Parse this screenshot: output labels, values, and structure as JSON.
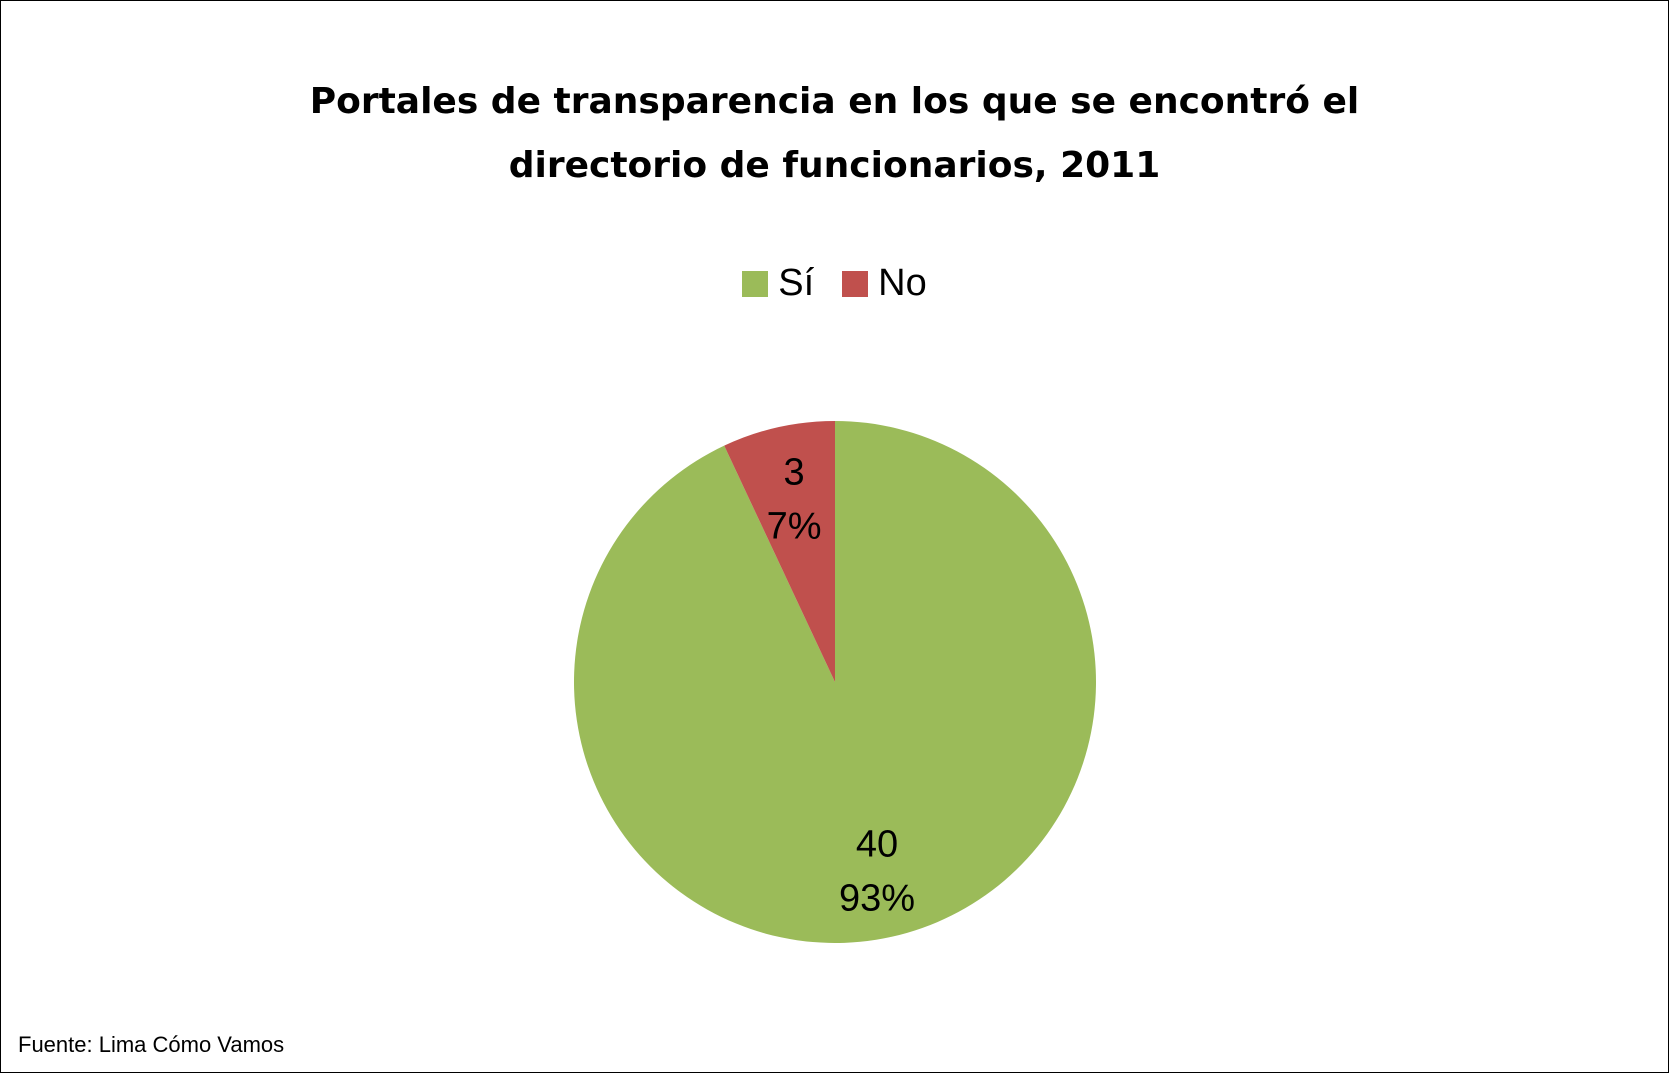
{
  "chart_data": {
    "type": "pie",
    "title": [
      "Portales de transparencia en los que se encontró el",
      "directorio de funcionarios, 2011"
    ],
    "categories": [
      "Sí",
      "No"
    ],
    "values": [
      40,
      3
    ],
    "labels": [
      {
        "value": "40",
        "percent": "93%"
      },
      {
        "value": "3",
        "percent": "7%"
      }
    ],
    "colors": [
      "#9BBB59",
      "#C0504D"
    ],
    "legend_position": "top"
  },
  "source": "Fuente: Lima Cómo Vamos"
}
